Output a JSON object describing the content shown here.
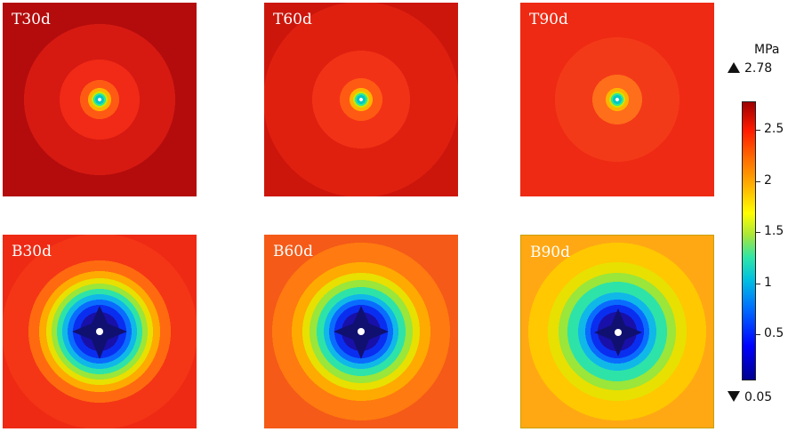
{
  "panels": [
    {
      "label": "T30d",
      "row": "top"
    },
    {
      "label": "T60d",
      "row": "top"
    },
    {
      "label": "T90d",
      "row": "top"
    },
    {
      "label": "B30d",
      "row": "bottom"
    },
    {
      "label": "B60d",
      "row": "bottom"
    },
    {
      "label": "B90d",
      "row": "bottom"
    }
  ],
  "colorbar": {
    "unit": "MPa",
    "max_label": "2.78",
    "min_label": "0.05",
    "ticks": [
      "2.5",
      "2",
      "1.5",
      "1",
      "0.5"
    ],
    "tick_values": [
      2.5,
      2.0,
      1.5,
      1.0,
      0.5
    ],
    "range": [
      0.05,
      2.78
    ],
    "colors": [
      "#00008f",
      "#0000ff",
      "#00c0e0",
      "#ffff00",
      "#ff6a00",
      "#9e0000"
    ]
  }
}
